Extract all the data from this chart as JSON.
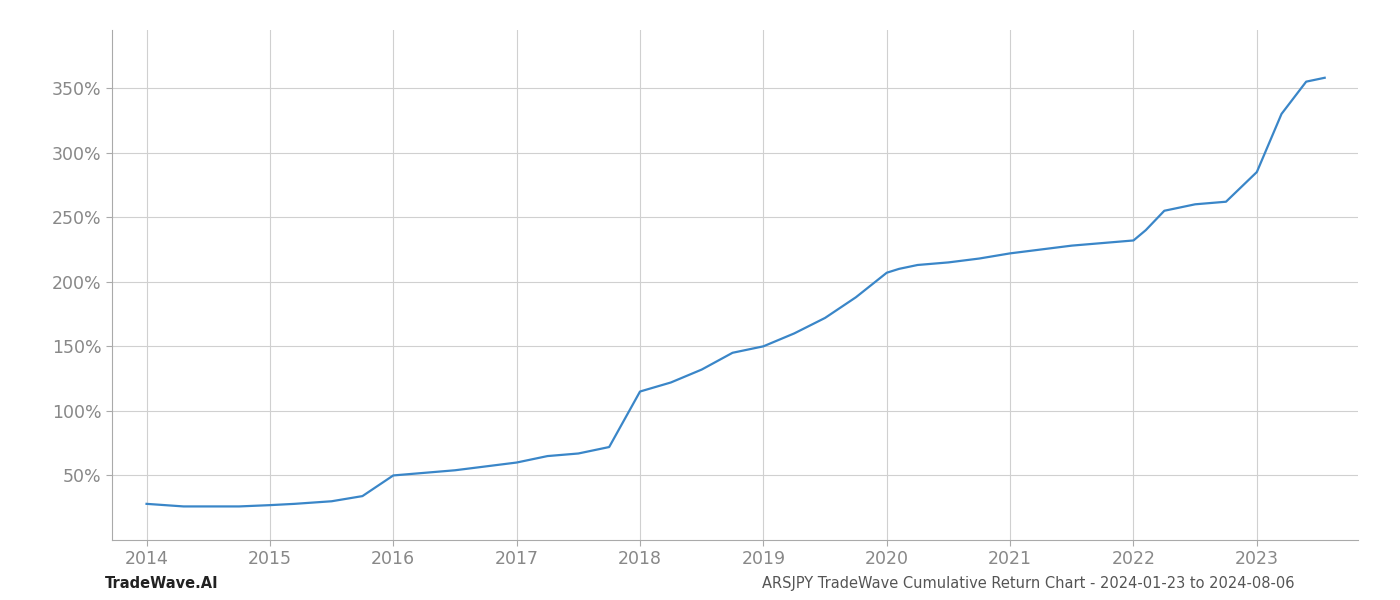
{
  "title": "ARSJPY TradeWave Cumulative Return Chart - 2024-01-23 to 2024-08-06",
  "footer_left": "TradeWave.AI",
  "footer_right": "ARSJPY TradeWave Cumulative Return Chart - 2024-01-23 to 2024-08-06",
  "line_color": "#3a86c8",
  "background_color": "#ffffff",
  "grid_color": "#d0d0d0",
  "x_data": [
    2014.0,
    2014.15,
    2014.3,
    2014.5,
    2014.75,
    2015.0,
    2015.2,
    2015.5,
    2015.75,
    2016.0,
    2016.25,
    2016.5,
    2016.75,
    2017.0,
    2017.1,
    2017.25,
    2017.5,
    2017.75,
    2018.0,
    2018.25,
    2018.5,
    2018.75,
    2019.0,
    2019.25,
    2019.5,
    2019.75,
    2020.0,
    2020.1,
    2020.25,
    2020.5,
    2020.75,
    2021.0,
    2021.25,
    2021.5,
    2021.75,
    2022.0,
    2022.1,
    2022.25,
    2022.5,
    2022.75,
    2023.0,
    2023.2,
    2023.4,
    2023.55
  ],
  "y_data": [
    28,
    27,
    26,
    26,
    26,
    27,
    28,
    30,
    34,
    50,
    52,
    54,
    57,
    60,
    62,
    65,
    67,
    72,
    115,
    122,
    132,
    145,
    150,
    160,
    172,
    188,
    207,
    210,
    213,
    215,
    218,
    222,
    225,
    228,
    230,
    232,
    240,
    255,
    260,
    262,
    285,
    330,
    355,
    358
  ],
  "xlim": [
    2013.72,
    2023.82
  ],
  "ylim": [
    0,
    395
  ],
  "yticks": [
    50,
    100,
    150,
    200,
    250,
    300,
    350
  ],
  "xticks": [
    2014,
    2015,
    2016,
    2017,
    2018,
    2019,
    2020,
    2021,
    2022,
    2023
  ],
  "line_width": 1.6,
  "figsize": [
    14.0,
    6.0
  ],
  "dpi": 100,
  "font_color_ticks": "#888888",
  "font_color_footer_left": "#222222",
  "font_color_footer_right": "#555555",
  "font_size_footer": 10.5,
  "font_size_ticks": 12.5
}
